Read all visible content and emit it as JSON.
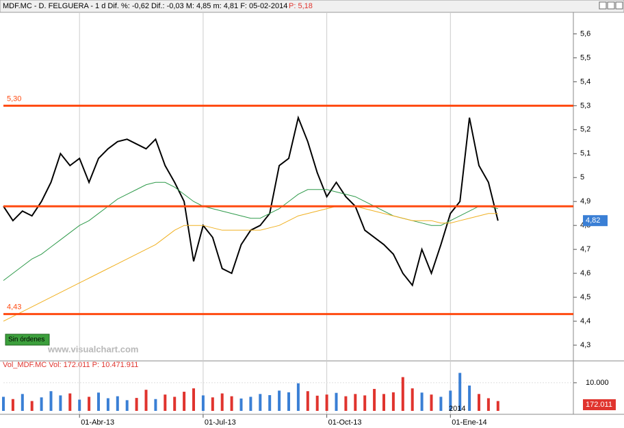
{
  "chart_data": [
    {
      "type": "line",
      "title": "MDF.MC - D. FELGUERA - 1 d Dif. %: -0,62 Dif.: -0,03 M: 4,85 m: 4,81 F: 05-02-2014",
      "title_price": "P: 5,18",
      "categories": [
        null,
        null,
        null,
        null,
        null,
        null,
        null,
        null,
        "01-Abr-13",
        null,
        null,
        null,
        null,
        null,
        null,
        null,
        null,
        null,
        null,
        null,
        null,
        "01-Jul-13",
        null,
        null,
        null,
        null,
        null,
        null,
        null,
        null,
        null,
        null,
        null,
        null,
        "01-Oct-13",
        null,
        null,
        null,
        null,
        null,
        null,
        null,
        null,
        null,
        null,
        null,
        null,
        "01-Ene-14",
        null,
        null,
        null,
        null,
        null
      ],
      "series": [
        {
          "color": "#000000",
          "values": [
            4.88,
            4.82,
            4.86,
            4.84,
            4.9,
            4.98,
            5.1,
            5.05,
            5.08,
            4.98,
            5.08,
            5.12,
            5.15,
            5.16,
            5.14,
            5.12,
            5.16,
            5.05,
            4.98,
            4.9,
            4.65,
            4.8,
            4.75,
            4.62,
            4.6,
            4.72,
            4.78,
            4.8,
            4.85,
            5.05,
            5.08,
            5.25,
            5.15,
            5.02,
            4.92,
            4.98,
            4.92,
            4.88,
            4.78,
            4.75,
            4.72,
            4.68,
            4.6,
            4.55,
            4.7,
            4.6,
            4.72,
            4.85,
            4.9,
            5.25,
            5.05,
            4.98,
            4.82
          ]
        },
        {
          "color": "#2e9a4a",
          "values": [
            4.57,
            4.6,
            4.63,
            4.66,
            4.68,
            4.71,
            4.74,
            4.77,
            4.8,
            4.82,
            4.85,
            4.88,
            4.91,
            4.93,
            4.95,
            4.97,
            4.98,
            4.98,
            4.96,
            4.93,
            4.9,
            4.88,
            4.87,
            4.86,
            4.85,
            4.84,
            4.83,
            4.83,
            4.85,
            4.87,
            4.9,
            4.93,
            4.95,
            4.95,
            4.95,
            4.94,
            4.93,
            4.92,
            4.9,
            4.88,
            4.86,
            4.84,
            4.83,
            4.82,
            4.81,
            4.8,
            4.8,
            4.82,
            4.84,
            4.86,
            4.88,
            4.88,
            4.87
          ]
        },
        {
          "color": "#f0b020",
          "values": [
            4.4,
            4.42,
            4.44,
            4.46,
            4.48,
            4.5,
            4.52,
            4.54,
            4.56,
            4.58,
            4.6,
            4.62,
            4.64,
            4.66,
            4.68,
            4.7,
            4.72,
            4.75,
            4.78,
            4.8,
            4.8,
            4.8,
            4.79,
            4.78,
            4.78,
            4.78,
            4.78,
            4.78,
            4.79,
            4.8,
            4.82,
            4.84,
            4.85,
            4.86,
            4.87,
            4.88,
            4.88,
            4.88,
            4.87,
            4.86,
            4.85,
            4.84,
            4.83,
            4.82,
            4.82,
            4.82,
            4.81,
            4.81,
            4.82,
            4.83,
            4.84,
            4.85,
            4.85
          ]
        }
      ],
      "levels": [
        5.3,
        4.88,
        4.43
      ],
      "level_labels": [
        "5,30",
        null,
        "4,43"
      ],
      "level_color": "#ff4a10",
      "ylim": [
        4.24,
        5.69
      ],
      "yticks": [
        {
          "value": 4.3,
          "label": "4,3"
        },
        {
          "value": 4.4,
          "label": "4,4"
        },
        {
          "value": 4.5,
          "label": "4,5"
        },
        {
          "value": 4.6,
          "label": "4,6"
        },
        {
          "value": 4.7,
          "label": "4,7"
        },
        {
          "value": 4.8,
          "label": "4,8"
        },
        {
          "value": 4.9,
          "label": "4,9"
        },
        5,
        {
          "value": 5.1,
          "label": "5,1"
        },
        {
          "value": 5.2,
          "label": "5,2"
        },
        {
          "value": 5.3,
          "label": "5,3"
        },
        {
          "value": 5.4,
          "label": "5,4"
        },
        {
          "value": 5.5,
          "label": "5,5"
        },
        {
          "value": 5.6,
          "label": "5,6"
        }
      ],
      "price_tag": {
        "value": 4.82,
        "label": "4,82"
      },
      "button": "Sin órdenes",
      "watermark": "www.visualchart.com"
    },
    {
      "type": "bar",
      "title": "Vol_MDF.MC Vol: 172.011 P: 10.471.911",
      "values": [
        5000,
        4200,
        6000,
        3500,
        4800,
        7000,
        5500,
        6200,
        4000,
        5000,
        6500,
        4500,
        5200,
        3800,
        4600,
        7500,
        4200,
        5800,
        5000,
        6800,
        8000,
        5500,
        4800,
        6200,
        5200,
        4400,
        5000,
        6000,
        5600,
        7200,
        6600,
        9800,
        7000,
        5400,
        5800,
        6400,
        5200,
        6000,
        5500,
        7800,
        6000,
        6600,
        12000,
        8000,
        6500,
        5800,
        5000,
        7200,
        13500,
        9000,
        6000,
        4500,
        3500
      ],
      "up_color": "#3a7fd5",
      "down_color": "#e0342e",
      "ylim": [
        0,
        14600
      ],
      "yticks": [
        {
          "value": 10000,
          "label": "10.000"
        }
      ],
      "price_tag": {
        "value": 172011,
        "label": "172.011"
      },
      "year_label": "2014"
    }
  ]
}
